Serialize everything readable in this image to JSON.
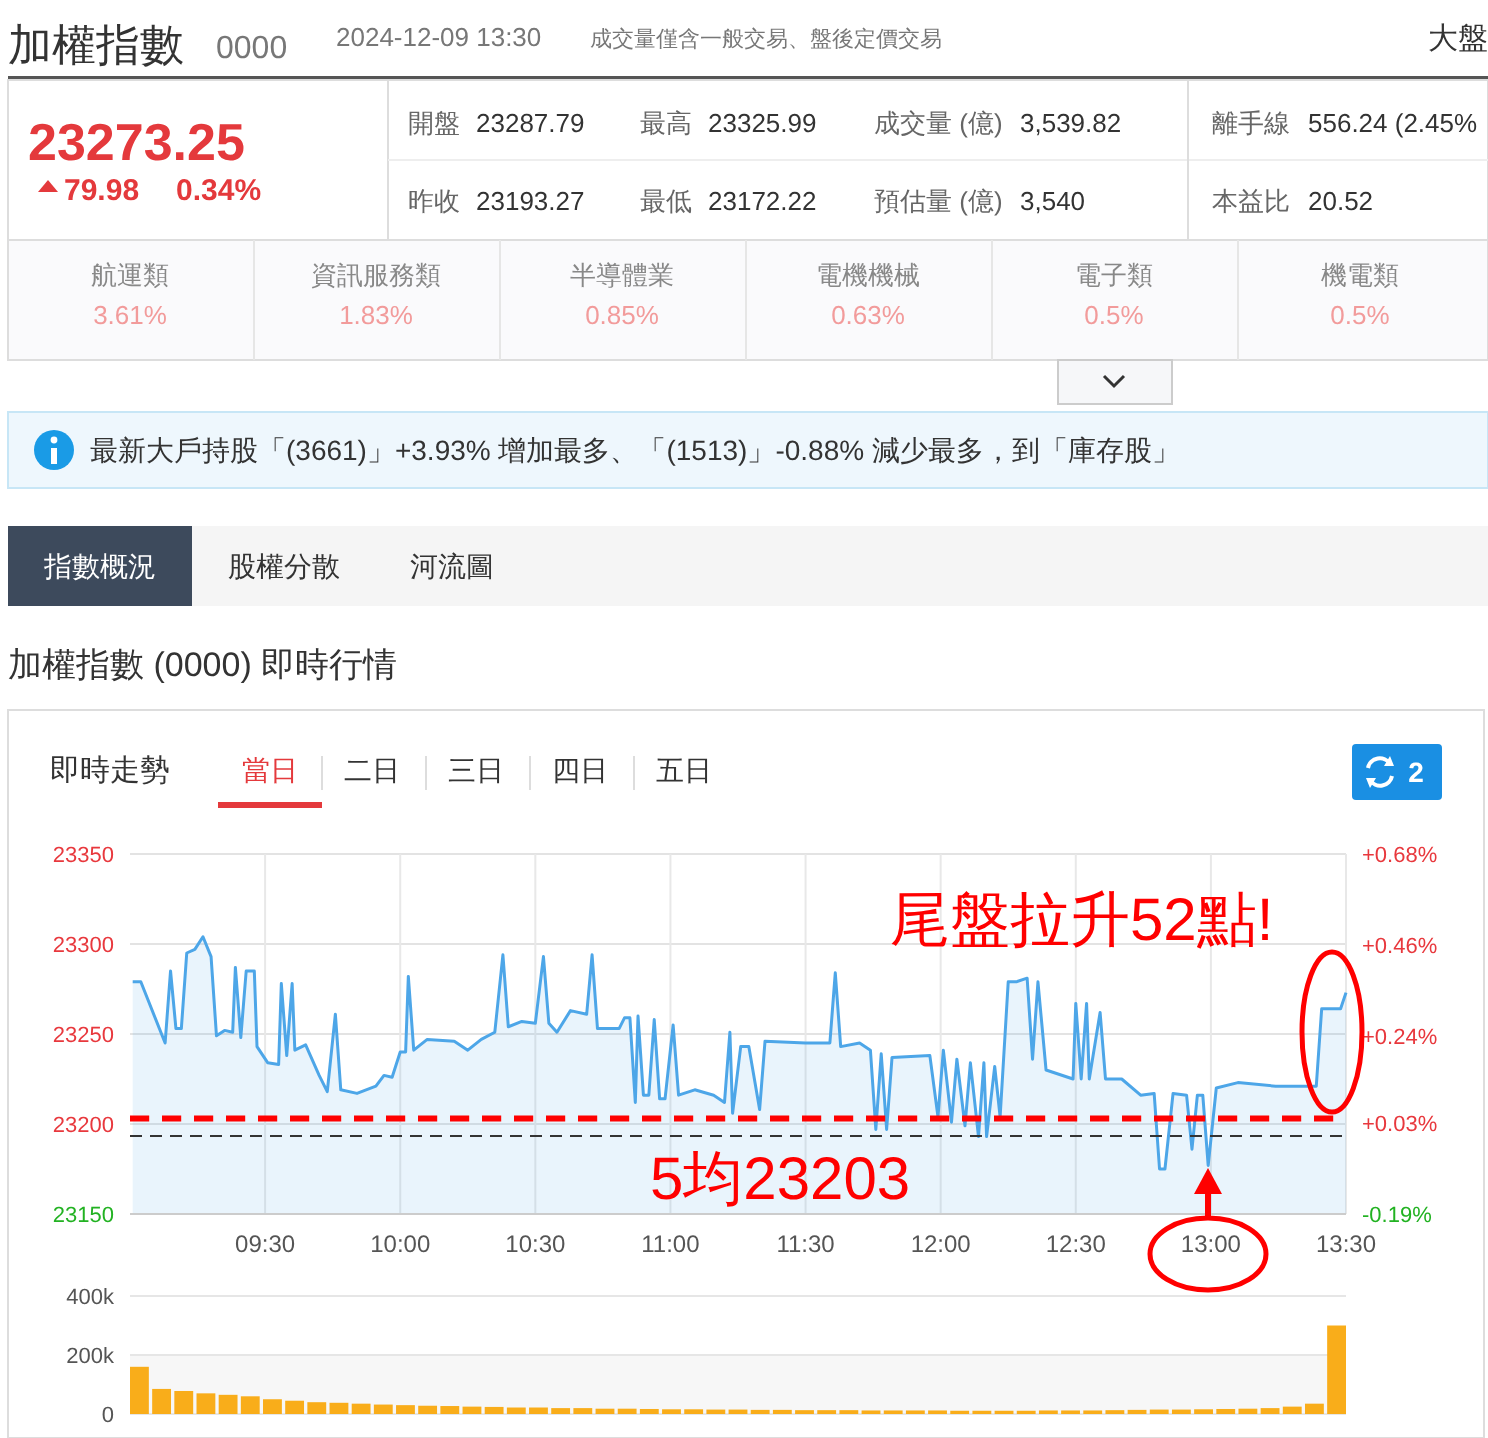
{
  "chart_data": [
    {
      "type": "other",
      "annotations": [
        "加權指數",
        "0000",
        "2024-12-09 13:30",
        "成交量僅含一般交易、盤後定價交易",
        "大盤",
        "23273.25",
        "79.98",
        "0.34%",
        "開盤",
        "23287.79",
        "最高",
        "23325.99",
        "成交量 (億)",
        "3,539.82",
        "離手線",
        "556.24 (2.45%",
        "昨收",
        "23193.27",
        "最低",
        "23172.22",
        "預估量 (億)",
        "3,540",
        "本益比",
        "20.52",
        "航運類",
        "3.61%",
        "資訊服務類",
        "1.83%",
        "半導體業",
        "0.85%",
        "電機機械",
        "0.63%",
        "電子類",
        "0.5%",
        "機電類",
        "0.5%",
        "最新大戶持股「(3661)」+3.93% 增加最多、「(1513)」-0.88% 減少最多，到「庫存股」",
        "指數概況",
        "股權分散",
        "河流圖",
        "加權指數 (0000) 即時行情",
        "即時走勢",
        "當日",
        "二日",
        "三日",
        "四日",
        "五日",
        "2"
      ]
    },
    {
      "type": "area",
      "xlim": [
        9,
        13.5
      ],
      "xticks": [
        {
          "value": 9.5,
          "label": "09:30"
        },
        {
          "value": 10,
          "label": "10:00"
        },
        {
          "value": 10.5,
          "label": "10:30"
        },
        {
          "value": 11,
          "label": "11:00"
        },
        {
          "value": 11.5,
          "label": "11:30"
        },
        {
          "value": 12,
          "label": "12:00"
        },
        {
          "value": 12.5,
          "label": "12:30"
        },
        {
          "value": 13,
          "label": "13:00"
        },
        {
          "value": 13.5,
          "label": "13:30"
        }
      ],
      "ylim": [
        23150,
        23350
      ],
      "yticks": [
        23150,
        23200,
        23250,
        23300,
        23350
      ],
      "y2lim": [
        -0.19,
        0.68
      ],
      "y2ticks": [
        {
          "value": -0.19,
          "label": "-0.19%"
        },
        {
          "value": 0.03,
          "label": "+0.03%"
        },
        {
          "value": 0.24,
          "label": "+0.24%"
        },
        {
          "value": 0.46,
          "label": "+0.46%"
        },
        {
          "value": 0.68,
          "label": "+0.68%"
        }
      ],
      "grid": true,
      "series": [
        {
          "color": "#4da6e8",
          "x": [
            9.01,
            9.04,
            9.13,
            9.15,
            9.17,
            9.19,
            9.21,
            9.24,
            9.27,
            9.3,
            9.32,
            9.35,
            9.38,
            9.39,
            9.41,
            9.43,
            9.46,
            9.47,
            9.51,
            9.55,
            9.56,
            9.58,
            9.6,
            9.61,
            9.65,
            9.7,
            9.73,
            9.76,
            9.78,
            9.84,
            9.91,
            9.94,
            9.97,
            10.0,
            10.02,
            10.03,
            10.05,
            10.1,
            10.2,
            10.25,
            10.3,
            10.35,
            10.38,
            10.4,
            10.45,
            10.5,
            10.53,
            10.55,
            10.58,
            10.63,
            10.69,
            10.71,
            10.73,
            10.81,
            10.83,
            10.85,
            10.87,
            10.88,
            10.9,
            10.92,
            10.94,
            10.96,
            10.98,
            11.01,
            11.03,
            11.09,
            11.16,
            11.2,
            11.22,
            11.23,
            11.26,
            11.29,
            11.33,
            11.35,
            11.5,
            11.59,
            11.61,
            11.63,
            11.7,
            11.74,
            11.76,
            11.78,
            11.8,
            11.82,
            11.96,
            11.99,
            12.01,
            12.04,
            12.06,
            12.09,
            12.11,
            12.14,
            12.16,
            12.17,
            12.2,
            12.22,
            12.25,
            12.28,
            12.32,
            12.34,
            12.36,
            12.39,
            12.49,
            12.5,
            12.52,
            12.54,
            12.55,
            12.59,
            12.61,
            12.67,
            12.74,
            12.79,
            12.81,
            12.83,
            12.86,
            12.91,
            12.93,
            12.95,
            12.97,
            12.99,
            13.02,
            13.1,
            13.24,
            13.33,
            13.39,
            13.41,
            13.48,
            13.5
          ],
          "values": [
            23279,
            23279,
            23245,
            23285,
            23253,
            23253,
            23295,
            23297,
            23304,
            23293,
            23249,
            23252,
            23251,
            23287,
            23248,
            23285,
            23285,
            23243,
            23234,
            23233,
            23278,
            23238,
            23278,
            23241,
            23244,
            23227,
            23218,
            23261,
            23219,
            23217,
            23221,
            23227,
            23226,
            23240,
            23240,
            23282,
            23241,
            23247,
            23246,
            23241,
            23247,
            23251,
            23294,
            23254,
            23257,
            23256,
            23293,
            23256,
            23251,
            23263,
            23261,
            23294,
            23253,
            23253,
            23259,
            23259,
            23212,
            23260,
            23216,
            23216,
            23258,
            23214,
            23214,
            23255,
            23216,
            23219,
            23216,
            23212,
            23251,
            23206,
            23243,
            23243,
            23208,
            23246,
            23245,
            23245,
            23284,
            23243,
            23245,
            23241,
            23197,
            23239,
            23197,
            23237,
            23238,
            23204,
            23241,
            23201,
            23236,
            23199,
            23234,
            23193,
            23234,
            23193,
            23232,
            23204,
            23279,
            23279,
            23281,
            23236,
            23279,
            23230,
            23225,
            23267,
            23225,
            23267,
            23225,
            23262,
            23225,
            23225,
            23216,
            23217,
            23175,
            23175,
            23217,
            23216,
            23186,
            23216,
            23216,
            23177,
            23220,
            23223,
            23221,
            23221,
            23221,
            23264,
            23264,
            23273
          ]
        }
      ],
      "ref_lines": [
        {
          "axis": "y",
          "value": 23193.27,
          "color": "#333333",
          "line_style": "dashed"
        },
        {
          "axis": "y",
          "value": 23203,
          "label": "5均23203",
          "color": "#ff0000",
          "line_style": "dashed"
        }
      ],
      "annotations": [
        "尾盤拉升52點!"
      ]
    },
    {
      "type": "bar",
      "categories": [
        null,
        null,
        null,
        null,
        null,
        null,
        null,
        null,
        null,
        null,
        null,
        null,
        null,
        null,
        null,
        null,
        null,
        null,
        null,
        null,
        null,
        null,
        null,
        null,
        null,
        null,
        null,
        null,
        null,
        null,
        null,
        null,
        null,
        null,
        null,
        null,
        null,
        null,
        null,
        null,
        null,
        null,
        null,
        null,
        null,
        null,
        null,
        null,
        null,
        null,
        null,
        null,
        null,
        null,
        null
      ],
      "values": [
        160000,
        85000,
        78000,
        70000,
        65000,
        60000,
        50000,
        45000,
        40000,
        38000,
        35000,
        32000,
        30000,
        28000,
        27000,
        25000,
        24000,
        22000,
        22000,
        20000,
        20000,
        18000,
        18000,
        17000,
        16000,
        16000,
        15000,
        15000,
        14000,
        14000,
        13000,
        13000,
        13000,
        12000,
        12000,
        12000,
        12000,
        11000,
        11000,
        11000,
        11000,
        12000,
        12000,
        12000,
        13000,
        14000,
        15000,
        15000,
        16000,
        17000,
        18000,
        20000,
        25000,
        35000,
        300000
      ],
      "color": "#f9ad1a",
      "ylim": [
        0,
        400000
      ],
      "yticks": [
        {
          "value": 0,
          "label": "0"
        },
        {
          "value": 200000,
          "label": "200k"
        },
        {
          "value": 400000,
          "label": "400k"
        }
      ],
      "grid": "y"
    }
  ]
}
